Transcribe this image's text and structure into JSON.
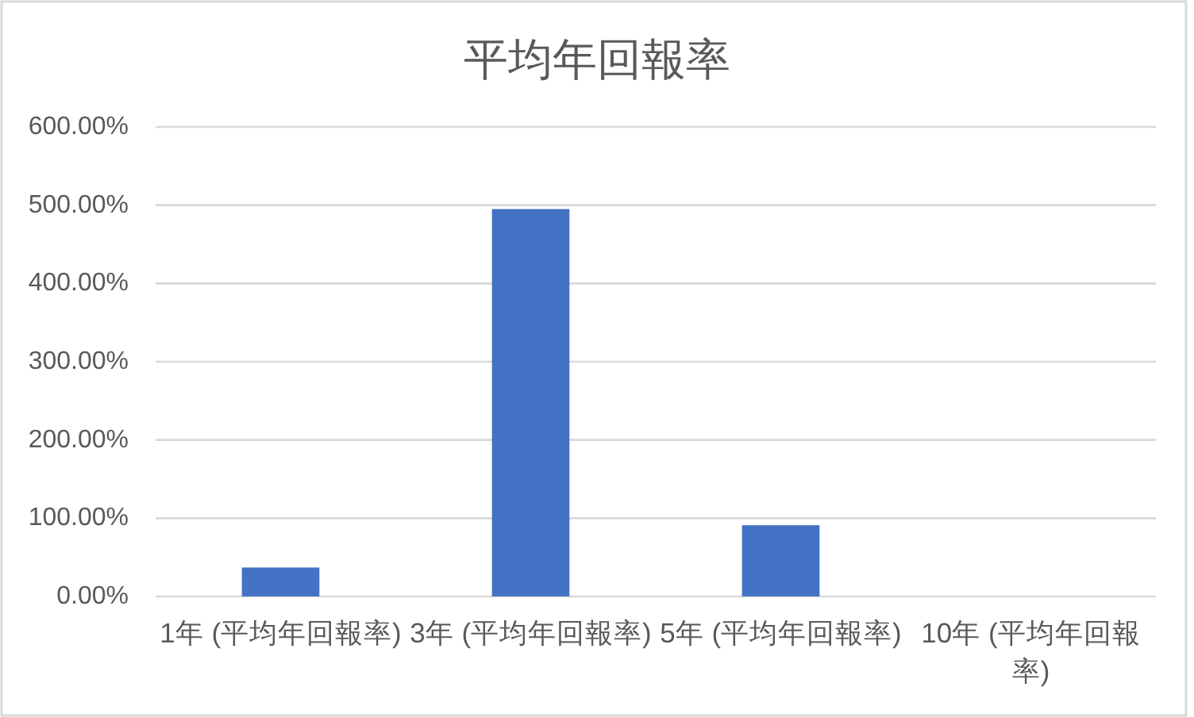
{
  "chart_data": {
    "type": "bar",
    "title": "平均年回報率",
    "categories": [
      "1年 (平均年回報率)",
      "3年 (平均年回報率)",
      "5年 (平均年回報率)",
      "10年 (平均年回報率)"
    ],
    "values": [
      37,
      495,
      91,
      null
    ],
    "color": "#4472c4",
    "ylim": [
      0,
      600
    ],
    "yticks": [
      {
        "value": 0,
        "label": "0.00%"
      },
      {
        "value": 100,
        "label": "100.00%"
      },
      {
        "value": 200,
        "label": "200.00%"
      },
      {
        "value": 300,
        "label": "300.00%"
      },
      {
        "value": 400,
        "label": "400.00%"
      },
      {
        "value": 500,
        "label": "500.00%"
      },
      {
        "value": 600,
        "label": "600.00%"
      }
    ],
    "grid": "y"
  }
}
